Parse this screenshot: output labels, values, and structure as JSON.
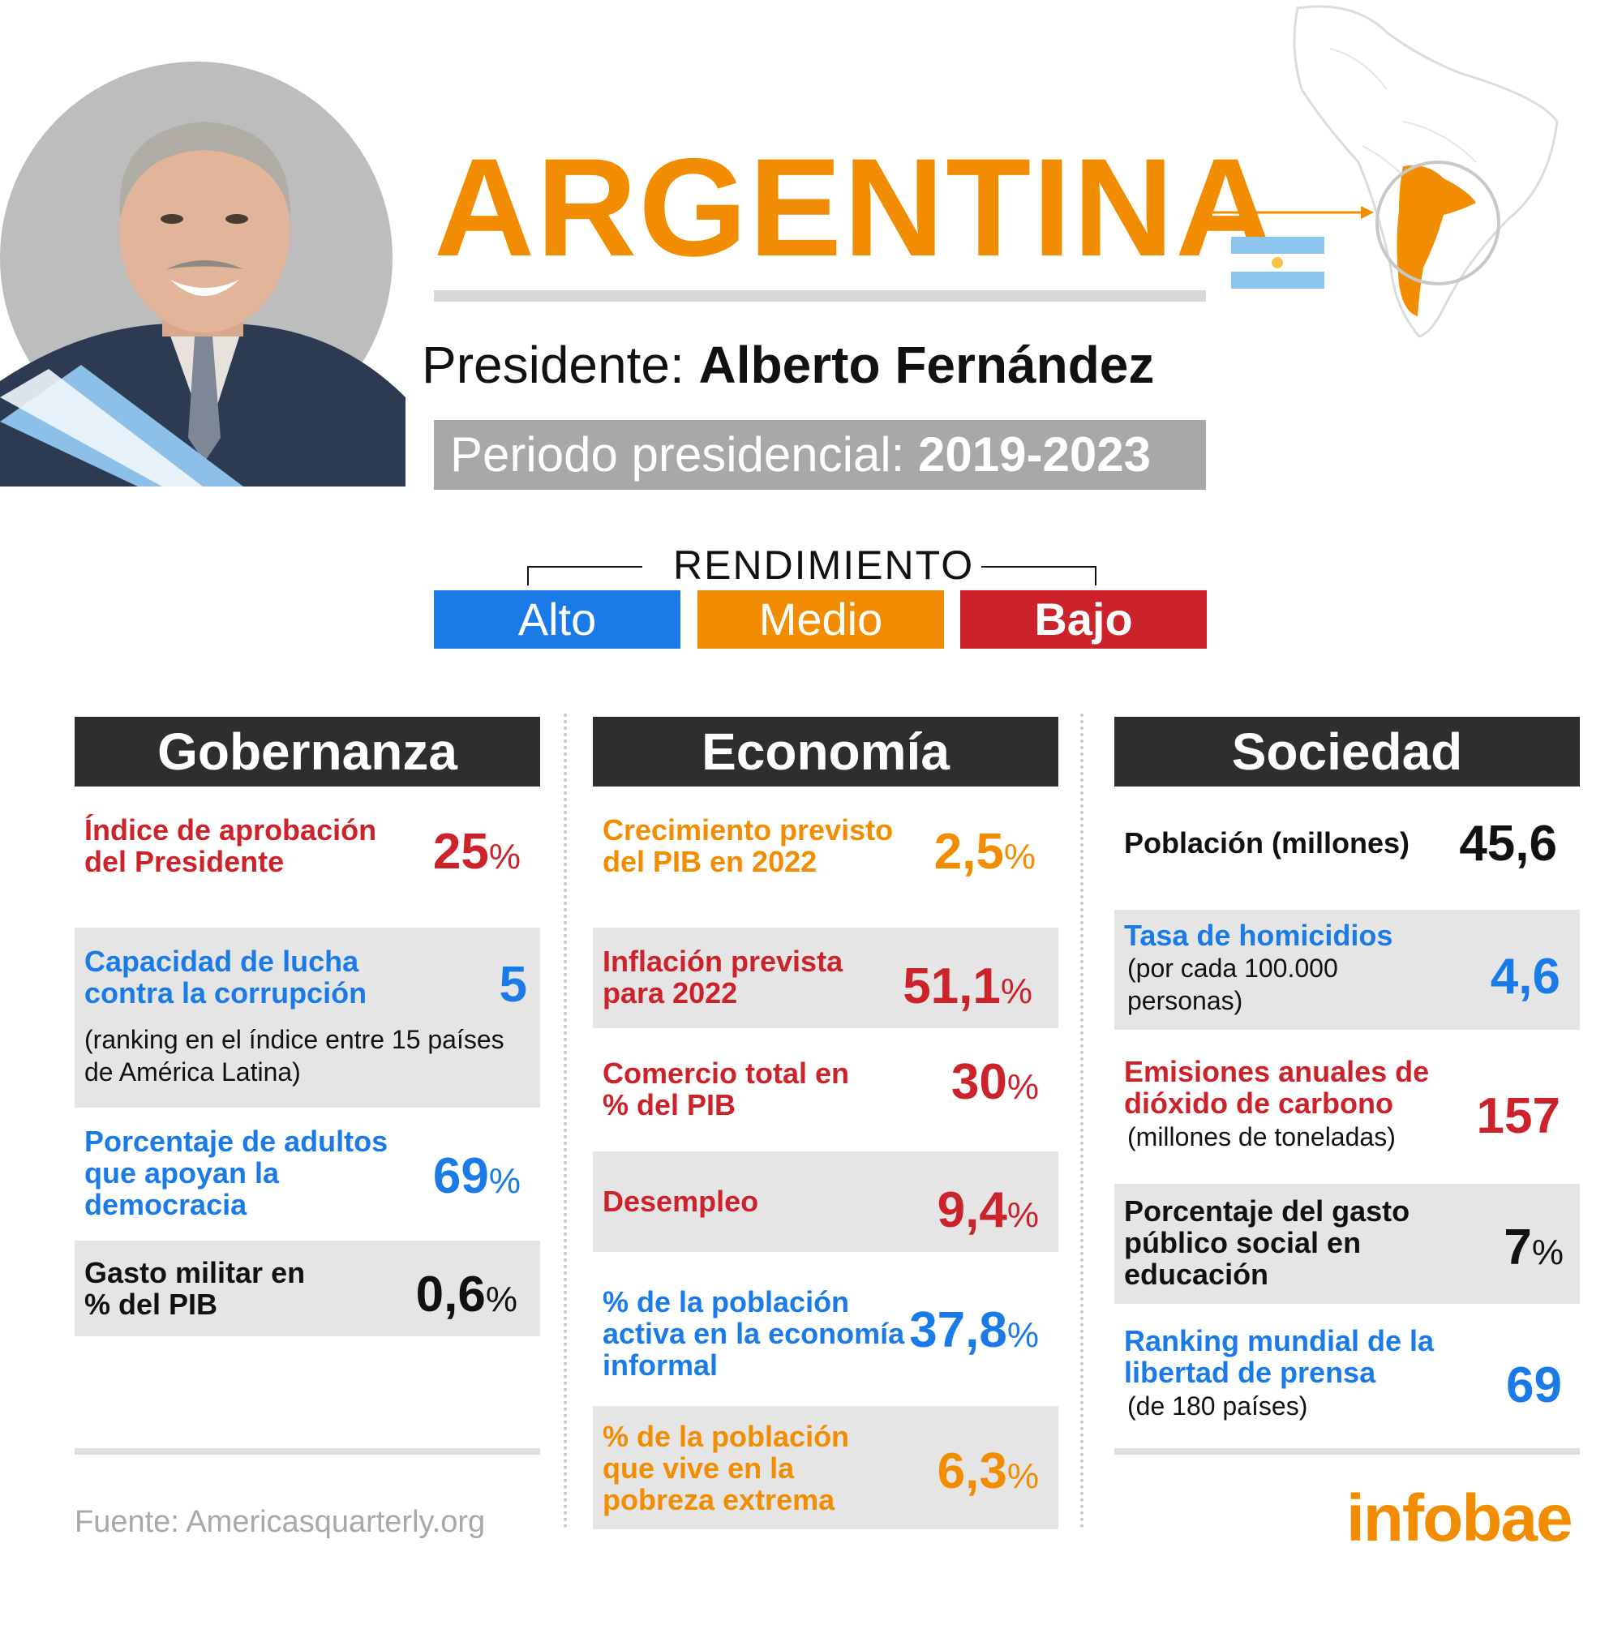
{
  "header": {
    "country": "ARGENTINA",
    "president_label": "Presidente:",
    "president_name": "Alberto Fernández",
    "period_label": "Periodo presidencial:",
    "period_years": "2019-2023"
  },
  "legend": {
    "title": "RENDIMIENTO",
    "alto": "Alto",
    "medio": "Medio",
    "bajo": "Bajo",
    "colors": {
      "alto": "#1a7be8",
      "medio": "#f28c00",
      "bajo": "#cc2229"
    }
  },
  "columns": {
    "gobernanza": {
      "title": "Gobernanza",
      "items": [
        {
          "label": "Índice de aprobación del Presidente",
          "value": "25",
          "unit": "%"
        },
        {
          "label": "Capacidad de lucha contra la corrupción",
          "value": "5",
          "unit": "",
          "note": "(ranking en el índice entre 15 países de América Latina)"
        },
        {
          "label": "Porcentaje de adultos que apoyan la democracia",
          "value": "69",
          "unit": "%"
        },
        {
          "label": "Gasto militar en % del PIB",
          "value": "0,6",
          "unit": "%"
        }
      ]
    },
    "economia": {
      "title": "Economía",
      "items": [
        {
          "label": "Crecimiento previsto del PIB en 2022",
          "value": "2,5",
          "unit": "%"
        },
        {
          "label": "Inflación prevista para 2022",
          "value": "51,1",
          "unit": "%"
        },
        {
          "label": "Comercio total en % del PIB",
          "value": "30",
          "unit": "%"
        },
        {
          "label": "Desempleo",
          "value": "9,4",
          "unit": "%"
        },
        {
          "label": "% de la población activa en la economía informal",
          "value": "37,8",
          "unit": "%"
        },
        {
          "label": "% de la población que vive en la pobreza extrema",
          "value": "6,3",
          "unit": "%"
        }
      ]
    },
    "sociedad": {
      "title": "Sociedad",
      "items": [
        {
          "label": "Población (millones)",
          "value": "45,6",
          "unit": ""
        },
        {
          "label": "Tasa de homicidios",
          "note": "(por cada 100.000 personas)",
          "value": "4,6",
          "unit": ""
        },
        {
          "label": "Emisiones anuales de dióxido de carbono",
          "note": "(millones de toneladas)",
          "value": "157",
          "unit": ""
        },
        {
          "label": "Porcentaje del gasto público social en educación",
          "value": "7",
          "unit": "%"
        },
        {
          "label": "Ranking mundial de la libertad de prensa",
          "note": "(de 180 países)",
          "value": "69",
          "unit": ""
        }
      ]
    }
  },
  "footer": {
    "source": "Fuente: Americasquarterly.org",
    "brand": "infobae"
  }
}
